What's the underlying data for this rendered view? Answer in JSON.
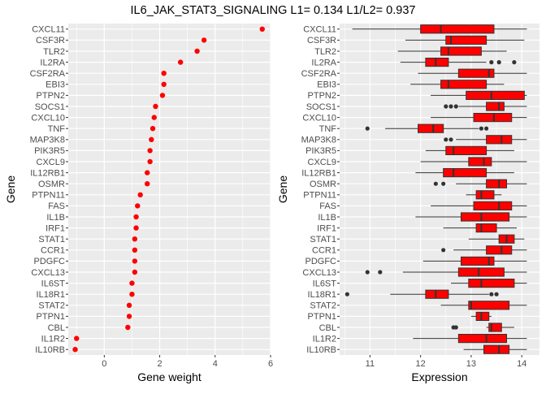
{
  "title": "IL6_JAK_STAT3_SIGNALING L1= 0.134 L1/L2= 0.937",
  "colors": {
    "panel_bg": "#ebebeb",
    "grid": "#ffffff",
    "point": "#ff0000",
    "box_fill": "#ff0000",
    "box_line": "#333333",
    "outlier": "#333333"
  },
  "chart_data": [
    {
      "type": "scatter",
      "title": "",
      "xlabel": "Gene weight",
      "ylabel": "Gene",
      "xlim": [
        -1.3,
        6.0
      ],
      "xticks": [
        0,
        2,
        4,
        6
      ],
      "grid": true,
      "genes": [
        "CXCL11",
        "CSF3R",
        "TLR2",
        "IL2RA",
        "CSF2RA",
        "EBI3",
        "PTPN2",
        "SOCS1",
        "CXCL10",
        "TNF",
        "MAP3K8",
        "PIK3R5",
        "CXCL9",
        "IL12RB1",
        "OSMR",
        "PTPN11",
        "FAS",
        "IL1B",
        "IRF1",
        "STAT1",
        "CCR1",
        "PDGFC",
        "CXCL13",
        "IL6ST",
        "IL18R1",
        "STAT2",
        "PTPN1",
        "CBL",
        "IL1R2",
        "IL10RB"
      ],
      "values": [
        5.7,
        3.6,
        3.35,
        2.75,
        2.15,
        2.15,
        2.1,
        1.85,
        1.8,
        1.75,
        1.7,
        1.65,
        1.65,
        1.55,
        1.55,
        1.3,
        1.2,
        1.15,
        1.15,
        1.1,
        1.1,
        1.1,
        1.1,
        1.0,
        1.0,
        0.9,
        0.9,
        0.85,
        -1.0,
        -1.05
      ]
    },
    {
      "type": "box",
      "title": "",
      "xlabel": "Expression",
      "ylabel": "Gene",
      "xlim": [
        10.4,
        14.35
      ],
      "xticks": [
        11,
        12,
        13,
        14
      ],
      "grid": true,
      "genes": [
        "CXCL11",
        "CSF3R",
        "TLR2",
        "IL2RA",
        "CSF2RA",
        "EBI3",
        "PTPN2",
        "SOCS1",
        "CXCL10",
        "TNF",
        "MAP3K8",
        "PIK3R5",
        "CXCL9",
        "IL12RB1",
        "OSMR",
        "PTPN11",
        "FAS",
        "IL1B",
        "IRF1",
        "STAT1",
        "CCR1",
        "PDGFC",
        "CXCL13",
        "IL6ST",
        "IL18R1",
        "STAT2",
        "PTPN1",
        "CBL",
        "IL1R2",
        "IL10RB"
      ],
      "boxes": [
        {
          "min": 10.65,
          "q1": 12.0,
          "median": 12.4,
          "q3": 13.45,
          "max": 14.1,
          "outliers": []
        },
        {
          "min": 11.7,
          "q1": 12.5,
          "median": 12.6,
          "q3": 13.3,
          "max": 14.05,
          "outliers": []
        },
        {
          "min": 11.55,
          "q1": 12.4,
          "median": 12.55,
          "q3": 13.2,
          "max": 13.7,
          "outliers": []
        },
        {
          "min": 11.6,
          "q1": 12.1,
          "median": 12.3,
          "q3": 12.55,
          "max": 13.3,
          "outliers": [
            13.4,
            13.55,
            13.85
          ]
        },
        {
          "min": 11.95,
          "q1": 12.75,
          "median": 13.35,
          "q3": 13.45,
          "max": 14.1,
          "outliers": []
        },
        {
          "min": 11.8,
          "q1": 12.4,
          "median": 12.55,
          "q3": 13.3,
          "max": 13.65,
          "outliers": []
        },
        {
          "min": 12.2,
          "q1": 12.9,
          "median": 13.4,
          "q3": 14.05,
          "max": 14.1,
          "outliers": []
        },
        {
          "min": 12.75,
          "q1": 13.3,
          "median": 13.55,
          "q3": 13.65,
          "max": 14.1,
          "outliers": [
            12.5,
            12.6,
            12.7
          ]
        },
        {
          "min": 12.2,
          "q1": 13.05,
          "median": 13.45,
          "q3": 13.8,
          "max": 14.1,
          "outliers": []
        },
        {
          "min": 11.3,
          "q1": 11.95,
          "median": 12.25,
          "q3": 12.45,
          "max": 13.15,
          "outliers": [
            10.95,
            13.2,
            13.3
          ]
        },
        {
          "min": 12.7,
          "q1": 13.3,
          "median": 13.6,
          "q3": 13.8,
          "max": 14.1,
          "outliers": [
            12.5,
            12.6
          ]
        },
        {
          "min": 12.1,
          "q1": 12.5,
          "median": 12.65,
          "q3": 13.3,
          "max": 13.85,
          "outliers": []
        },
        {
          "min": 12.0,
          "q1": 12.95,
          "median": 13.25,
          "q3": 13.4,
          "max": 14.1,
          "outliers": []
        },
        {
          "min": 11.9,
          "q1": 12.45,
          "median": 12.65,
          "q3": 13.3,
          "max": 13.85,
          "outliers": []
        },
        {
          "min": 12.7,
          "q1": 13.3,
          "median": 13.55,
          "q3": 13.7,
          "max": 14.1,
          "outliers": [
            12.3,
            12.45
          ]
        },
        {
          "min": 12.9,
          "q1": 13.1,
          "median": 13.2,
          "q3": 13.45,
          "max": 13.6,
          "outliers": []
        },
        {
          "min": 12.2,
          "q1": 13.05,
          "median": 13.55,
          "q3": 13.8,
          "max": 14.1,
          "outliers": []
        },
        {
          "min": 11.9,
          "q1": 12.8,
          "median": 13.2,
          "q3": 13.75,
          "max": 14.1,
          "outliers": []
        },
        {
          "min": 12.45,
          "q1": 13.1,
          "median": 13.2,
          "q3": 13.5,
          "max": 13.9,
          "outliers": []
        },
        {
          "min": 12.95,
          "q1": 13.55,
          "median": 13.7,
          "q3": 13.85,
          "max": 14.05,
          "outliers": []
        },
        {
          "min": 12.65,
          "q1": 13.3,
          "median": 13.6,
          "q3": 13.8,
          "max": 14.1,
          "outliers": [
            12.45
          ]
        },
        {
          "min": 12.05,
          "q1": 12.8,
          "median": 13.35,
          "q3": 13.45,
          "max": 14.1,
          "outliers": []
        },
        {
          "min": 11.65,
          "q1": 12.75,
          "median": 13.15,
          "q3": 13.65,
          "max": 14.1,
          "outliers": [
            10.95,
            11.2
          ]
        },
        {
          "min": 12.6,
          "q1": 12.95,
          "median": 13.2,
          "q3": 13.85,
          "max": 14.1,
          "outliers": []
        },
        {
          "min": 11.4,
          "q1": 12.1,
          "median": 12.3,
          "q3": 12.55,
          "max": 13.35,
          "outliers": [
            10.55,
            13.4,
            13.5
          ]
        },
        {
          "min": 12.4,
          "q1": 12.95,
          "median": 13.0,
          "q3": 13.75,
          "max": 14.1,
          "outliers": []
        },
        {
          "min": 13.0,
          "q1": 13.1,
          "median": 13.2,
          "q3": 13.35,
          "max": 13.4,
          "outliers": []
        },
        {
          "min": 13.3,
          "q1": 13.35,
          "median": 13.4,
          "q3": 13.6,
          "max": 13.85,
          "outliers": [
            12.65,
            12.7
          ]
        },
        {
          "min": 11.85,
          "q1": 12.75,
          "median": 13.3,
          "q3": 13.7,
          "max": 14.1,
          "outliers": []
        },
        {
          "min": 12.85,
          "q1": 13.25,
          "median": 13.55,
          "q3": 13.75,
          "max": 14.1,
          "outliers": []
        }
      ]
    }
  ]
}
